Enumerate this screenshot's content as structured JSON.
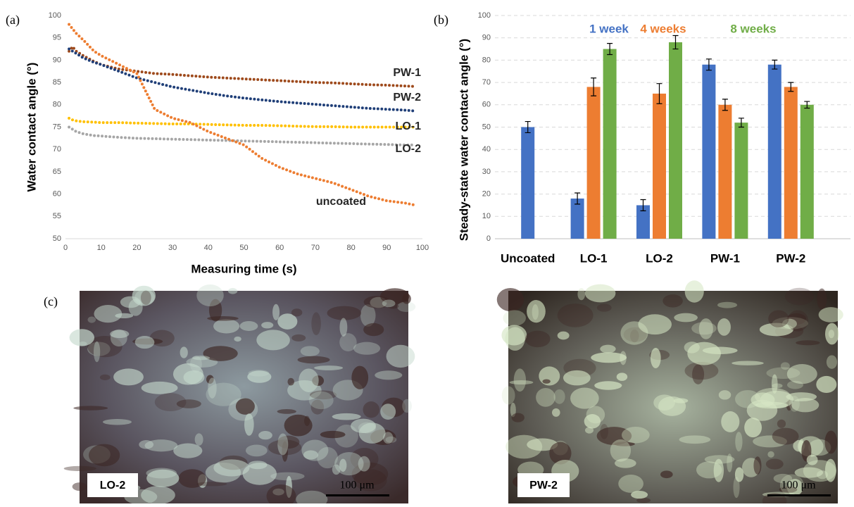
{
  "figure": {
    "panel_labels": [
      "(a)",
      "(b)",
      "(c)"
    ],
    "micrographs": [
      {
        "label": "LO-2",
        "scale_bar": "100 μm"
      },
      {
        "label": "PW-2",
        "scale_bar": "100 μm"
      }
    ]
  },
  "chart_data": [
    {
      "type": "line",
      "x_label": "Measuring time (s)",
      "y_label": "Water contact angle (°)",
      "x": [
        1,
        2,
        3,
        5,
        8,
        10,
        15,
        20,
        25,
        30,
        35,
        40,
        45,
        50,
        55,
        60,
        65,
        70,
        75,
        80,
        85,
        90,
        95,
        98
      ],
      "series": [
        {
          "name": "PW-1",
          "color": "#9e4a1c",
          "values": [
            92,
            93,
            92,
            91,
            89.7,
            89,
            88,
            87.5,
            87,
            86.8,
            86.5,
            86.2,
            86,
            85.8,
            85.6,
            85.4,
            85.2,
            85,
            84.9,
            84.7,
            84.5,
            84.4,
            84.2,
            84.1
          ]
        },
        {
          "name": "PW-2",
          "color": "#203f78",
          "values": [
            92.5,
            92,
            91.5,
            90.5,
            89.5,
            89,
            87.5,
            86,
            85,
            84,
            83.3,
            82.6,
            82,
            81.5,
            81.1,
            80.7,
            80.4,
            80.1,
            79.8,
            79.5,
            79.2,
            79,
            78.8,
            78.6
          ]
        },
        {
          "name": "LO-1",
          "color": "#ffc000",
          "values": [
            77,
            76.6,
            76.4,
            76.2,
            76.1,
            76,
            76,
            75.9,
            75.8,
            75.7,
            75.7,
            75.6,
            75.5,
            75.4,
            75.4,
            75.3,
            75.2,
            75.1,
            75.1,
            75,
            75,
            75,
            75,
            75
          ]
        },
        {
          "name": "LO-2",
          "color": "#a6a6a6",
          "values": [
            75,
            74.5,
            74,
            73.5,
            73.1,
            73,
            72.7,
            72.5,
            72.4,
            72.3,
            72.2,
            72.1,
            72,
            71.9,
            71.8,
            71.7,
            71.6,
            71.5,
            71.4,
            71.3,
            71.2,
            71.1,
            71,
            71
          ]
        },
        {
          "name": "uncoated",
          "color": "#ed7d31",
          "values": [
            98,
            97,
            96,
            94.5,
            92,
            91,
            89,
            87,
            79,
            77,
            76,
            74,
            72.5,
            71,
            68,
            66,
            64.5,
            63.5,
            62.5,
            61,
            59.5,
            58.5,
            58,
            57.5
          ]
        }
      ],
      "xlim": [
        0,
        100
      ],
      "xticks": [
        0,
        10,
        20,
        30,
        40,
        50,
        60,
        70,
        80,
        90,
        100
      ],
      "ylim": [
        50,
        100
      ],
      "yticks": [
        50,
        55,
        60,
        65,
        70,
        75,
        80,
        85,
        90,
        95,
        100
      ],
      "grid": false
    },
    {
      "type": "bar",
      "y_label": "Steady-state water contact angle (°)",
      "categories": [
        "Uncoated",
        "LO-1",
        "LO-2",
        "PW-1",
        "PW-2"
      ],
      "series": [
        {
          "name": "1 week",
          "color": "#4472c4",
          "values": [
            50,
            18,
            15,
            78,
            78
          ],
          "errors": [
            2.5,
            2.5,
            2.5,
            2.5,
            2
          ]
        },
        {
          "name": "4 weeks",
          "color": "#ed7d31",
          "values": [
            null,
            68,
            65,
            60,
            68
          ],
          "errors": [
            null,
            4,
            4.5,
            2.5,
            2
          ]
        },
        {
          "name": "8 weeks",
          "color": "#70ad47",
          "values": [
            null,
            85,
            88,
            52,
            60
          ],
          "errors": [
            null,
            2.5,
            3,
            2,
            1.5
          ]
        }
      ],
      "ylim": [
        0,
        100
      ],
      "yticks": [
        0,
        10,
        20,
        30,
        40,
        50,
        60,
        70,
        80,
        90,
        100
      ],
      "grid": true
    }
  ]
}
